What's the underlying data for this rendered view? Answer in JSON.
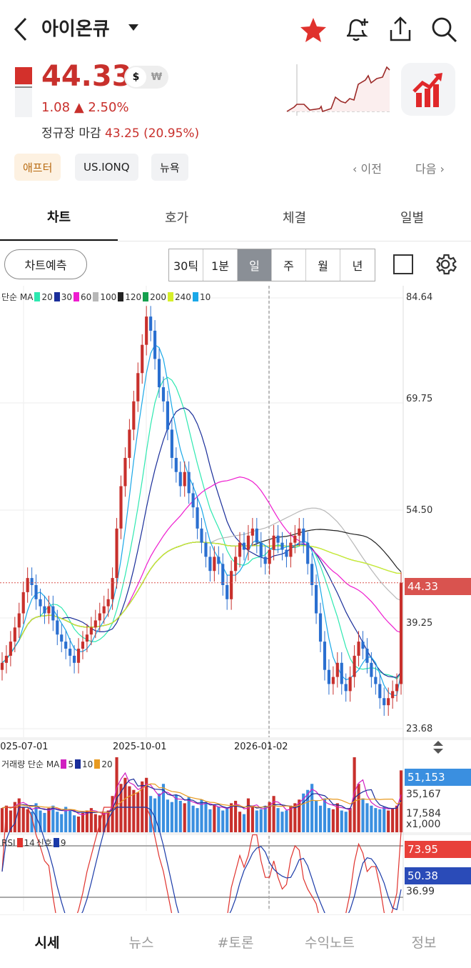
{
  "header": {
    "title": "아이온큐",
    "back_icon": "chevron-left-icon",
    "dropdown_icon": "caret-down-icon",
    "icons": [
      "star-icon",
      "bell-plus-icon",
      "share-icon",
      "search-icon"
    ],
    "star_color": "#e0322d"
  },
  "quote": {
    "price": "44.33",
    "currency_usd": "$",
    "currency_krw": "₩",
    "change": "1.08",
    "change_pct": "▲ 2.50%",
    "close_label": "정규장 마감",
    "close_value": "43.25 (20.95%)",
    "up_color": "#c8302c"
  },
  "tags": [
    "애프터",
    "US.IONQ",
    "뉴욕"
  ],
  "pager": {
    "prev": "‹ 이전",
    "next": "다음 ›"
  },
  "tabs": [
    "차트",
    "호가",
    "체결",
    "일별"
  ],
  "toolbar": {
    "predict": "차트예측",
    "periods": [
      "30틱",
      "1분",
      "일",
      "주",
      "월",
      "년"
    ],
    "selected": "일"
  },
  "chart_data": {
    "type": "candlestick",
    "legend": {
      "label": "단순 MA",
      "items": [
        {
          "p": "20",
          "c": "#2de8b0"
        },
        {
          "p": "30",
          "c": "#1a2e9a"
        },
        {
          "p": "60",
          "c": "#ee1ccf"
        },
        {
          "p": "100",
          "c": "#b8b8b8"
        },
        {
          "p": "120",
          "c": "#222222"
        },
        {
          "p": "200",
          "c": "#14a04e"
        },
        {
          "p": "240",
          "c": "#d6ef2a"
        },
        {
          "p": "10",
          "c": "#1aa8e8"
        }
      ]
    },
    "y_ticks": [
      "84.64",
      "69.75",
      "54.50",
      "39.25",
      "23.68"
    ],
    "ylim": [
      23.68,
      84.64
    ],
    "x_ticks": [
      "2025-07-01",
      "2025-10-01",
      "2026-01-02"
    ],
    "last_price": "44.33",
    "closes": [
      33,
      34,
      36,
      38,
      40,
      43,
      45,
      44,
      42,
      41,
      40,
      41,
      39,
      37,
      36,
      35,
      34,
      33,
      35,
      36,
      37,
      38,
      39,
      40,
      41,
      42,
      45,
      52,
      58,
      62,
      66,
      70,
      74,
      78,
      82,
      80,
      76,
      72,
      70,
      66,
      62,
      60,
      58,
      60,
      57,
      55,
      52,
      50,
      48,
      46,
      48,
      47,
      44,
      42,
      46,
      48,
      50,
      49,
      51,
      52,
      50,
      48,
      47,
      49,
      51,
      50,
      49,
      48,
      50,
      51,
      52,
      50,
      47,
      44,
      40,
      36,
      32,
      30,
      31,
      33,
      30,
      29,
      31,
      34,
      36,
      35,
      33,
      31,
      30,
      28,
      27,
      28,
      29,
      30,
      44.33
    ],
    "volume": {
      "legend": "거래량 단순 MA",
      "ma": [
        {
          "p": "5",
          "c": "#d020c0"
        },
        {
          "p": "10",
          "c": "#1a2e9a"
        },
        {
          "p": "20",
          "c": "#e89a20"
        }
      ],
      "ticks": [
        "51,153",
        "35,167",
        "17,584"
      ],
      "unit": "x1,000",
      "ylim": [
        0,
        62000
      ],
      "values": [
        20,
        22,
        18,
        25,
        28,
        21,
        19,
        17,
        24,
        18,
        16,
        20,
        22,
        17,
        15,
        21,
        19,
        14,
        13,
        16,
        18,
        20,
        15,
        14,
        16,
        18,
        30,
        62,
        40,
        45,
        38,
        35,
        33,
        42,
        45,
        30,
        28,
        32,
        40,
        27,
        25,
        31,
        26,
        24,
        29,
        22,
        20,
        27,
        25,
        19,
        23,
        21,
        18,
        20,
        24,
        26,
        17,
        15,
        28,
        22,
        18,
        19,
        21,
        25,
        30,
        20,
        17,
        18,
        22,
        24,
        27,
        32,
        35,
        40,
        26,
        22,
        28,
        20,
        19,
        24,
        18,
        17,
        20,
        62,
        40,
        28,
        24,
        22,
        20,
        19,
        21,
        18,
        20,
        22,
        51.153
      ]
    },
    "rsi": {
      "legend": "RSI",
      "period": "14",
      "signal_label": "신호",
      "signal": "9",
      "ticks": [
        "73.95",
        "50.38",
        "36.99"
      ],
      "levels": [
        70,
        30
      ],
      "rsi_color": "#e0322d",
      "signal_color": "#1a3aa8"
    }
  },
  "nav": [
    "시세",
    "뉴스",
    "#토론",
    "수익노트",
    "정보"
  ]
}
